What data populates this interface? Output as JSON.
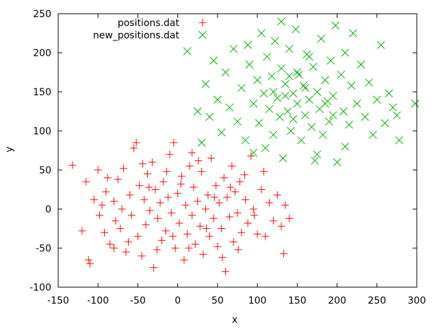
{
  "chart_data": {
    "type": "scatter",
    "title": "",
    "xlabel": "x",
    "ylabel": "y",
    "xlim": [
      -150,
      300
    ],
    "ylim": [
      -100,
      250
    ],
    "grid": false,
    "legend_position": "top-left",
    "x_ticks": [
      "-150",
      "-100",
      "-50",
      "0",
      "50",
      "100",
      "150",
      "200",
      "250",
      "300"
    ],
    "y_ticks": [
      "-100",
      "-50",
      "0",
      "50",
      "100",
      "150",
      "200",
      "250"
    ],
    "series": [
      {
        "name": "positions.dat",
        "marker": "plus",
        "color": "#ff0000",
        "points": [
          [
            -132,
            56
          ],
          [
            -115,
            35
          ],
          [
            -112,
            -65
          ],
          [
            -110,
            -70
          ],
          [
            -120,
            -28
          ],
          [
            -100,
            50
          ],
          [
            -98,
            -8
          ],
          [
            -95,
            5
          ],
          [
            -92,
            -30
          ],
          [
            -90,
            22
          ],
          [
            -85,
            -45
          ],
          [
            -80,
            10
          ],
          [
            -78,
            -15
          ],
          [
            -75,
            38
          ],
          [
            -72,
            -25
          ],
          [
            -70,
            0
          ],
          [
            -68,
            52
          ],
          [
            -65,
            -55
          ],
          [
            -60,
            18
          ],
          [
            -58,
            -8
          ],
          [
            -55,
            78
          ],
          [
            -52,
            85
          ],
          [
            -50,
            -35
          ],
          [
            -48,
            30
          ],
          [
            -45,
            -60
          ],
          [
            -42,
            12
          ],
          [
            -40,
            -20
          ],
          [
            -38,
            45
          ],
          [
            -35,
            -2
          ],
          [
            -32,
            60
          ],
          [
            -30,
            -75
          ],
          [
            -28,
            25
          ],
          [
            -25,
            -12
          ],
          [
            -22,
            8
          ],
          [
            -20,
            -40
          ],
          [
            -18,
            35
          ],
          [
            -15,
            -28
          ],
          [
            -12,
            15
          ],
          [
            -10,
            70
          ],
          [
            -8,
            -5
          ],
          [
            -5,
            85
          ],
          [
            -3,
            -50
          ],
          [
            0,
            20
          ],
          [
            2,
            -18
          ],
          [
            5,
            42
          ],
          [
            8,
            -65
          ],
          [
            10,
            5
          ],
          [
            12,
            -32
          ],
          [
            15,
            55
          ],
          [
            18,
            -8
          ],
          [
            20,
            28
          ],
          [
            22,
            -45
          ],
          [
            25,
            10
          ],
          [
            28,
            -22
          ],
          [
            30,
            48
          ],
          [
            32,
            -58
          ],
          [
            35,
            0
          ],
          [
            38,
            18
          ],
          [
            40,
            -35
          ],
          [
            42,
            65
          ],
          [
            45,
            -12
          ],
          [
            48,
            30
          ],
          [
            50,
            -48
          ],
          [
            52,
            8
          ],
          [
            55,
            -25
          ],
          [
            58,
            40
          ],
          [
            60,
            -80
          ],
          [
            62,
            15
          ],
          [
            65,
            -10
          ],
          [
            68,
            55
          ],
          [
            70,
            -42
          ],
          [
            72,
            22
          ],
          [
            75,
            -5
          ],
          [
            78,
            35
          ],
          [
            80,
            -30
          ],
          [
            85,
            12
          ],
          [
            88,
            -18
          ],
          [
            92,
            68
          ],
          [
            95,
            0
          ],
          [
            100,
            -32
          ],
          [
            105,
            25
          ],
          [
            108,
            48
          ],
          [
            110,
            -35
          ],
          [
            115,
            8
          ],
          [
            120,
            -15
          ],
          [
            125,
            18
          ],
          [
            130,
            -22
          ],
          [
            133,
            -57
          ],
          [
            135,
            5
          ],
          [
            140,
            -12
          ],
          [
            -105,
            12
          ],
          [
            -88,
            40
          ],
          [
            -62,
            -42
          ],
          [
            -44,
            58
          ],
          [
            -26,
            -52
          ],
          [
            -14,
            48
          ],
          [
            -6,
            -35
          ],
          [
            4,
            32
          ],
          [
            14,
            -50
          ],
          [
            26,
            62
          ],
          [
            36,
            -25
          ],
          [
            46,
            15
          ],
          [
            56,
            -62
          ],
          [
            66,
            28
          ],
          [
            76,
            -52
          ],
          [
            84,
            44
          ],
          [
            96,
            -8
          ],
          [
            -80,
            -50
          ],
          [
            -36,
            28
          ],
          [
            18,
            72
          ]
        ]
      },
      {
        "name": "new_positions.dat",
        "marker": "cross",
        "color": "#00b000",
        "points": [
          [
            12,
            202
          ],
          [
            25,
            125
          ],
          [
            30,
            85
          ],
          [
            35,
            160
          ],
          [
            40,
            118
          ],
          [
            45,
            190
          ],
          [
            50,
            140
          ],
          [
            55,
            98
          ],
          [
            60,
            175
          ],
          [
            65,
            130
          ],
          [
            70,
            205
          ],
          [
            75,
            112
          ],
          [
            80,
            155
          ],
          [
            85,
            88
          ],
          [
            90,
            185
          ],
          [
            95,
            135
          ],
          [
            100,
            165
          ],
          [
            102,
            110
          ],
          [
            105,
            225
          ],
          [
            108,
            148
          ],
          [
            110,
            78
          ],
          [
            112,
            195
          ],
          [
            115,
            128
          ],
          [
            118,
            170
          ],
          [
            120,
            95
          ],
          [
            122,
            215
          ],
          [
            125,
            142
          ],
          [
            128,
            118
          ],
          [
            130,
            180
          ],
          [
            132,
            65
          ],
          [
            135,
            160
          ],
          [
            138,
            125
          ],
          [
            140,
            205
          ],
          [
            142,
            100
          ],
          [
            145,
            148
          ],
          [
            148,
            230
          ],
          [
            150,
            135
          ],
          [
            152,
            172
          ],
          [
            155,
            88
          ],
          [
            158,
            158
          ],
          [
            160,
            120
          ],
          [
            162,
            198
          ],
          [
            165,
            140
          ],
          [
            168,
            105
          ],
          [
            170,
            182
          ],
          [
            172,
            62
          ],
          [
            175,
            150
          ],
          [
            178,
            128
          ],
          [
            180,
            218
          ],
          [
            182,
            95
          ],
          [
            185,
            165
          ],
          [
            188,
            138
          ],
          [
            190,
            112
          ],
          [
            192,
            190
          ],
          [
            195,
            145
          ],
          [
            198,
            235
          ],
          [
            200,
            60
          ],
          [
            205,
            172
          ],
          [
            208,
            125
          ],
          [
            210,
            200
          ],
          [
            215,
            108
          ],
          [
            218,
            158
          ],
          [
            220,
            225
          ],
          [
            225,
            135
          ],
          [
            230,
            185
          ],
          [
            235,
            118
          ],
          [
            240,
            162
          ],
          [
            245,
            95
          ],
          [
            250,
            140
          ],
          [
            255,
            210
          ],
          [
            260,
            110
          ],
          [
            265,
            148
          ],
          [
            270,
            130
          ],
          [
            275,
            120
          ],
          [
            278,
            88
          ],
          [
            298,
            135
          ],
          [
            95,
            72
          ],
          [
            88,
            210
          ],
          [
            130,
            240
          ],
          [
            175,
            70
          ],
          [
            210,
            80
          ],
          [
            145,
            115
          ],
          [
            165,
            195
          ],
          [
            120,
            150
          ],
          [
            150,
            175
          ],
          [
            185,
            135
          ],
          [
            135,
            145
          ],
          [
            160,
            155
          ],
          [
            195,
            120
          ],
          [
            140,
            170
          ]
        ]
      }
    ]
  }
}
